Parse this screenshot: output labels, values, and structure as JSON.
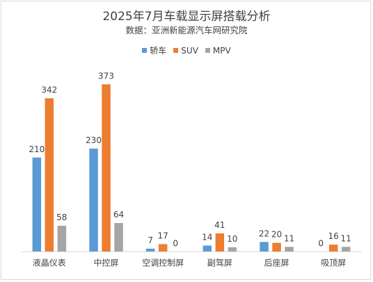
{
  "chart_data": {
    "type": "bar",
    "title": "2025年7月车载显示屏搭载分析",
    "subtitle": "数据：亚洲新能源汽车网研究院",
    "categories": [
      "液晶仪表",
      "中控屏",
      "空调控制屏",
      "副驾屏",
      "后座屏",
      "吸顶屏"
    ],
    "series": [
      {
        "name": "轿车",
        "color": "#5b9bd5",
        "values": [
          210,
          230,
          7,
          14,
          22,
          0
        ]
      },
      {
        "name": "SUV",
        "color": "#ed7d31",
        "values": [
          342,
          373,
          17,
          41,
          20,
          16
        ]
      },
      {
        "name": "MPV",
        "color": "#a5a5a5",
        "values": [
          58,
          64,
          0,
          10,
          11,
          11
        ]
      }
    ],
    "ylim": [
      0,
      400
    ],
    "legend_position": "top",
    "grid": false,
    "data_labels": true
  }
}
